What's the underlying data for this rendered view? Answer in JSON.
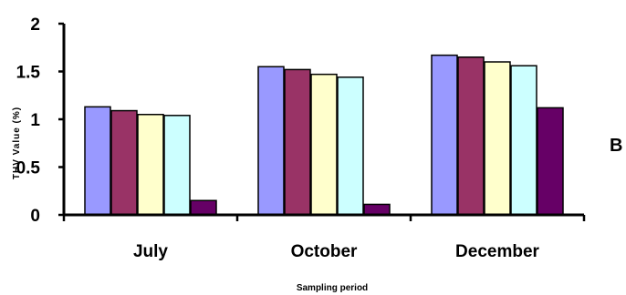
{
  "chart_data": {
    "type": "bar",
    "categories": [
      "July",
      "October",
      "December"
    ],
    "series": [
      {
        "color": "#9999ff",
        "values": [
          1.13,
          1.55,
          1.67
        ]
      },
      {
        "color": "#993366",
        "values": [
          1.09,
          1.52,
          1.65
        ]
      },
      {
        "color": "#ffffcc",
        "values": [
          1.05,
          1.47,
          1.6
        ]
      },
      {
        "color": "#ccffff",
        "values": [
          1.04,
          1.44,
          1.56
        ]
      },
      {
        "color": "#660066",
        "values": [
          0.15,
          0.11,
          1.12
        ]
      }
    ],
    "xlabel": "Sampling period",
    "ylabel": "THV Value (%)",
    "ylim": [
      0,
      2
    ],
    "yticks": [
      "0",
      "0.5",
      "1",
      "1.5",
      "2"
    ],
    "grid": false,
    "panel_label": "B"
  }
}
